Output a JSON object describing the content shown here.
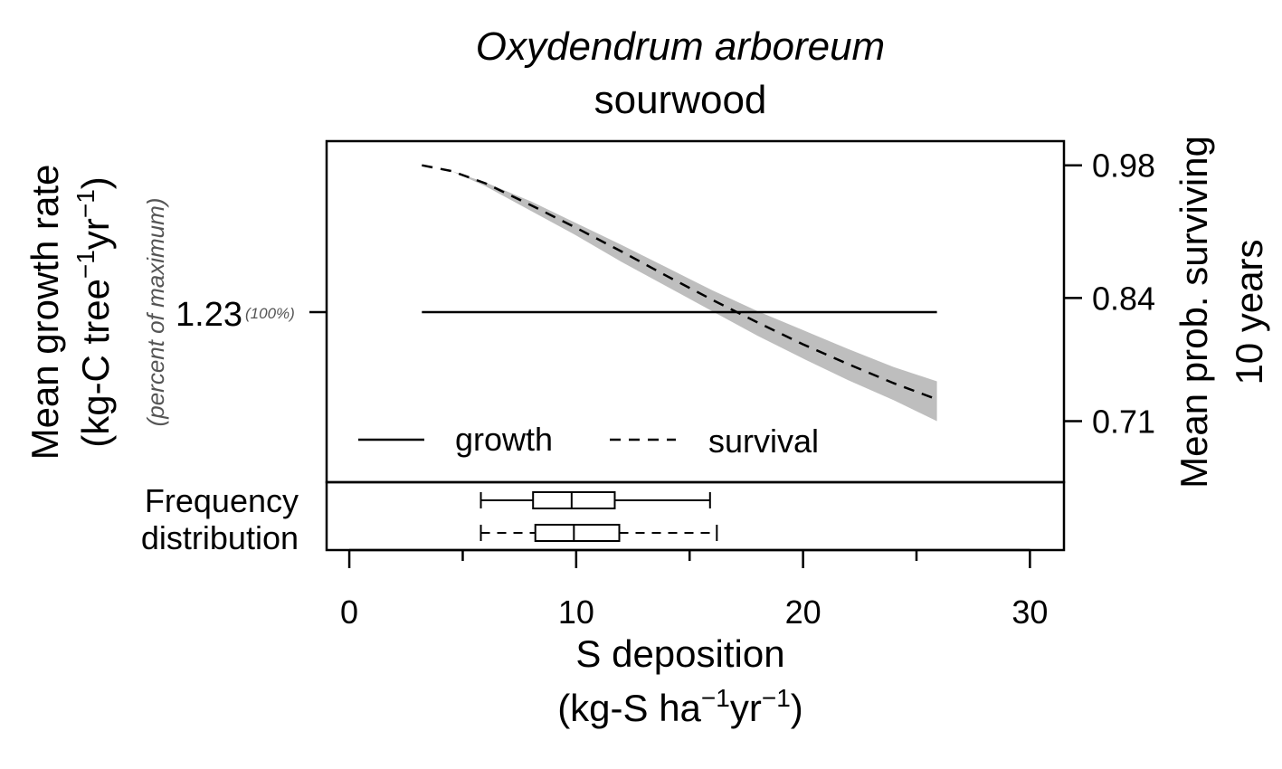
{
  "chart_data": {
    "type": "line",
    "title": "Oxydendrum arboreum",
    "subtitle": "sourwood",
    "xlabel": "S deposition",
    "xunit": {
      "base": "(kg-S ha",
      "exp1": "−1",
      "mid": "yr",
      "exp2": "−1",
      "close": ")"
    },
    "xlim": [
      -1,
      31.5
    ],
    "xticks": [
      0,
      10,
      20,
      30
    ],
    "ylabel_left": "Mean growth rate",
    "ylabel_left_unit": {
      "base": "(kg-C tree",
      "exp1": "−1",
      "mid": "yr",
      "exp2": "−1",
      "close": ")"
    },
    "ylabel_left_note": "(percent of maximum)",
    "left_tick": {
      "value": "1.23",
      "pct": "(100%)"
    },
    "ylabel_right_line1": "Mean prob. surviving",
    "ylabel_right_line2": "10 years",
    "right_ylim": [
      0.6455,
      1.0055
    ],
    "right_ticks": [
      0.98,
      0.84,
      0.71
    ],
    "series": [
      {
        "name": "growth",
        "style": "solid",
        "axis": "left",
        "x": [
          3.2,
          25.9
        ],
        "relative_value": [
          1.0,
          1.0
        ]
      },
      {
        "name": "survival",
        "style": "dashed",
        "axis": "right",
        "x": [
          3.2,
          4.5,
          6,
          8,
          10,
          12,
          14,
          16,
          18,
          20,
          22,
          24,
          25.9
        ],
        "y": [
          0.98,
          0.974,
          0.961,
          0.938,
          0.914,
          0.889,
          0.863,
          0.838,
          0.814,
          0.791,
          0.77,
          0.75,
          0.733
        ]
      }
    ],
    "band": {
      "x": [
        4.5,
        6,
        8,
        10,
        12,
        14,
        16,
        18,
        20,
        22,
        24,
        25.9
      ],
      "upper": [
        0.974,
        0.962,
        0.942,
        0.919,
        0.896,
        0.872,
        0.848,
        0.826,
        0.806,
        0.786,
        0.767,
        0.752
      ],
      "lower": [
        0.974,
        0.958,
        0.932,
        0.906,
        0.878,
        0.852,
        0.826,
        0.8,
        0.776,
        0.753,
        0.732,
        0.71
      ],
      "color": "#bebebe"
    },
    "legend": {
      "position": "bottom-left",
      "items": [
        "growth",
        "survival"
      ]
    },
    "frequency_label_line1": "Frequency",
    "frequency_label_line2": "distribution",
    "boxplots": [
      {
        "style": "solid",
        "whisker_low": 5.8,
        "q1": 8.1,
        "median": 9.8,
        "q3": 11.7,
        "whisker_high": 15.9
      },
      {
        "style": "dashed",
        "whisker_low": 5.8,
        "q1": 8.2,
        "median": 9.9,
        "q3": 11.9,
        "whisker_high": 16.2
      }
    ]
  }
}
